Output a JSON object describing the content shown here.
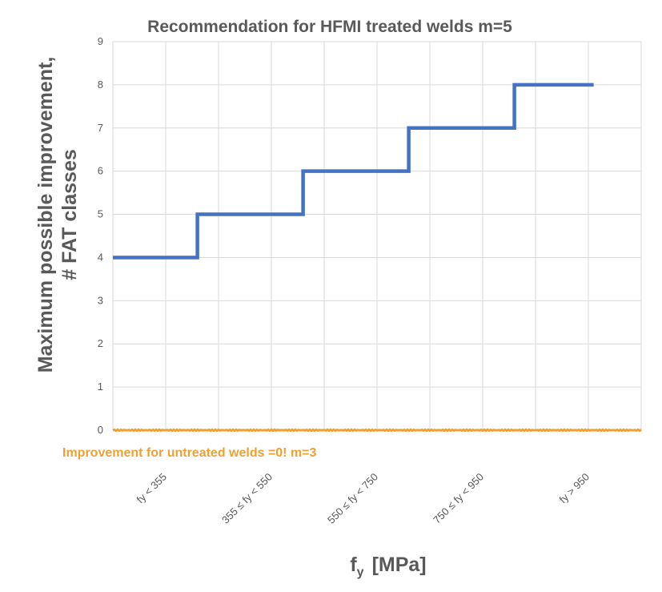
{
  "chart_data": {
    "type": "line",
    "title": "Recommendation for HFMI treated welds m=5",
    "ylabel_lines": [
      "Maximum possible improvement,",
      "# FAT classes"
    ],
    "xlabel_main": "f",
    "xlabel_sub": "y",
    "xlabel_unit": "[MPa]",
    "ylim": [
      0,
      9
    ],
    "yticks": [
      0,
      1,
      2,
      3,
      4,
      5,
      6,
      7,
      8,
      9
    ],
    "categories": [
      "fy < 355",
      "355 ≤ fy < 550",
      "550 ≤ fy < 750",
      "750 ≤ fy < 950",
      "fy > 950"
    ],
    "grid": true,
    "series": [
      {
        "color": "#4472c4",
        "style": "step",
        "steps": [
          {
            "x_start": 0,
            "x_end": 0.8,
            "value": 4
          },
          {
            "x_start": 0.8,
            "x_end": 1.8,
            "value": 5
          },
          {
            "x_start": 1.8,
            "x_end": 2.8,
            "value": 6
          },
          {
            "x_start": 2.8,
            "x_end": 3.8,
            "value": 7
          },
          {
            "x_start": 3.8,
            "x_end": 4.55,
            "value": 8
          }
        ]
      },
      {
        "color": "#f0a030",
        "style": "flat",
        "value": 0
      }
    ],
    "annotation": "Improvement for untreated welds =0! m=3"
  }
}
